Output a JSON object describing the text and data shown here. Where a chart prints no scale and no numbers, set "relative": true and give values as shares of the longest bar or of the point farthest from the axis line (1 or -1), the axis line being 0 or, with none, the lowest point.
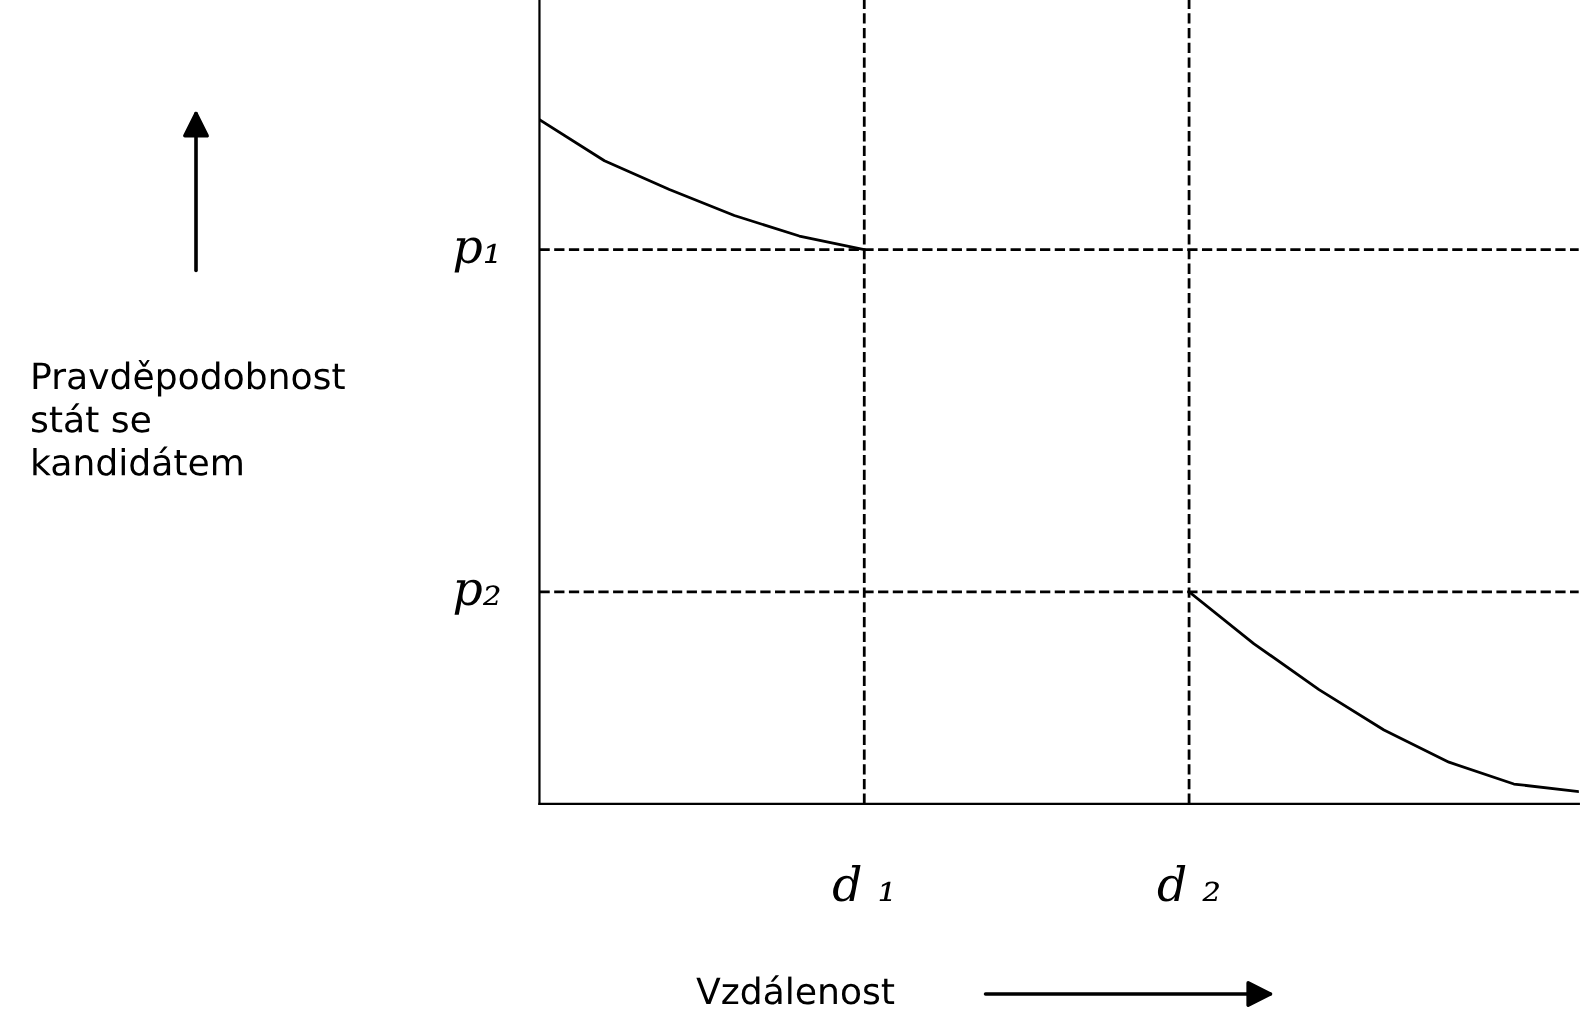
{
  "chart_data": {
    "type": "line",
    "relative": true,
    "xlabel": "Vzdálenost",
    "annotations": [
      "Pravděpodobnost\nstát se\nkandidátem"
    ],
    "categories": [
      null,
      null,
      null,
      null,
      null,
      "d ₁",
      null,
      null,
      null,
      null,
      "d ₂",
      null,
      null,
      null,
      null,
      null,
      null
    ],
    "series": [
      {
        "color": "#000000",
        "values": [
          1.0,
          0.94,
          0.898,
          0.86,
          0.83,
          0.81,
          null,
          null,
          null,
          null,
          0.31,
          0.234,
          0.167,
          0.108,
          0.061,
          0.029,
          0.018
        ]
      }
    ],
    "ref_lines": [
      {
        "axis": "y",
        "value": 0.81,
        "label": "p₁",
        "line_style": "dashed"
      },
      {
        "axis": "y",
        "value": 0.31,
        "label": "p₂",
        "line_style": "dashed"
      },
      {
        "axis": "x",
        "value": "d ₁",
        "line_style": "dashed"
      },
      {
        "axis": "x",
        "value": "d ₂",
        "line_style": "dashed"
      }
    ],
    "marker": "none",
    "line_style": "solid"
  }
}
